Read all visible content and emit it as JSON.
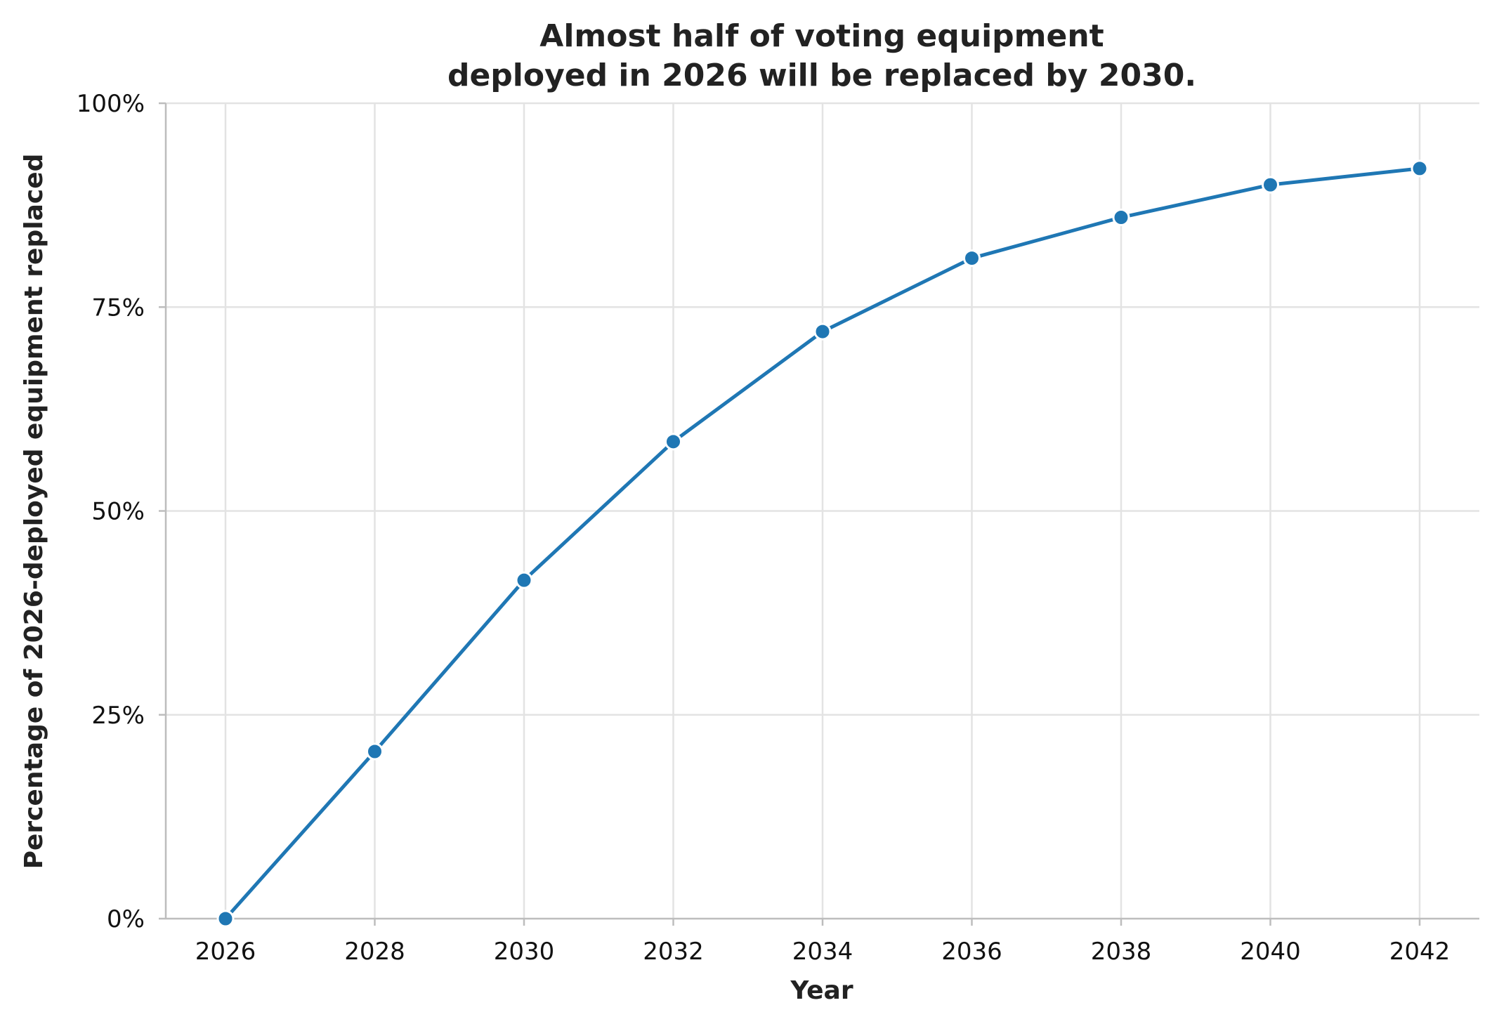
{
  "chart_data": {
    "type": "line",
    "title_lines": [
      "Almost half of voting equipment",
      "deployed in 2026 will be replaced by 2030."
    ],
    "xlabel": "Year",
    "ylabel": "Percentage of 2026-deployed equipment replaced",
    "xlim": [
      2025.2,
      2042.8
    ],
    "ylim": [
      0,
      100
    ],
    "x_ticks": [
      2026,
      2028,
      2030,
      2032,
      2034,
      2036,
      2038,
      2040,
      2042
    ],
    "x_tick_labels": [
      "2026",
      "2028",
      "2030",
      "2032",
      "2034",
      "2036",
      "2038",
      "2040",
      "2042"
    ],
    "y_ticks": [
      0,
      25,
      50,
      75,
      100
    ],
    "y_tick_labels": [
      "0%",
      "25%",
      "50%",
      "75%",
      "100%"
    ],
    "grid": true,
    "series": [
      {
        "color": "#1f77b4",
        "x": [
          2026,
          2028,
          2030,
          2032,
          2034,
          2036,
          2038,
          2040,
          2042
        ],
        "y": [
          0,
          20.5,
          41.5,
          58.5,
          72,
          81,
          86,
          90,
          92
        ]
      }
    ]
  }
}
